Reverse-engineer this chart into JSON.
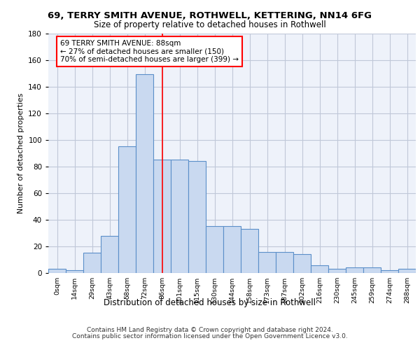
{
  "title1": "69, TERRY SMITH AVENUE, ROTHWELL, KETTERING, NN14 6FG",
  "title2": "Size of property relative to detached houses in Rothwell",
  "xlabel": "Distribution of detached houses by size in Rothwell",
  "ylabel": "Number of detached properties",
  "bar_labels": [
    "0sqm",
    "14sqm",
    "29sqm",
    "43sqm",
    "58sqm",
    "72sqm",
    "86sqm",
    "101sqm",
    "115sqm",
    "130sqm",
    "144sqm",
    "158sqm",
    "173sqm",
    "187sqm",
    "202sqm",
    "216sqm",
    "230sqm",
    "245sqm",
    "259sqm",
    "274sqm",
    "288sqm"
  ],
  "bar_heights": [
    3,
    2,
    15,
    28,
    95,
    149,
    85,
    85,
    84,
    35,
    35,
    33,
    16,
    16,
    14,
    6,
    3,
    4,
    4,
    2,
    3
  ],
  "bar_color": "#c9d9f0",
  "bar_edge_color": "#5b8fc9",
  "grid_color": "#c0c8d8",
  "background_color": "#eef2fa",
  "annotation_line1": "69 TERRY SMITH AVENUE: 88sqm",
  "annotation_line2": "← 27% of detached houses are smaller (150)",
  "annotation_line3": "70% of semi-detached houses are larger (399) →",
  "annotation_box_color": "white",
  "annotation_box_edge": "red",
  "red_line_x": 6,
  "ylim": [
    0,
    180
  ],
  "yticks": [
    0,
    20,
    40,
    60,
    80,
    100,
    120,
    140,
    160,
    180
  ],
  "footer1": "Contains HM Land Registry data © Crown copyright and database right 2024.",
  "footer2": "Contains public sector information licensed under the Open Government Licence v3.0."
}
